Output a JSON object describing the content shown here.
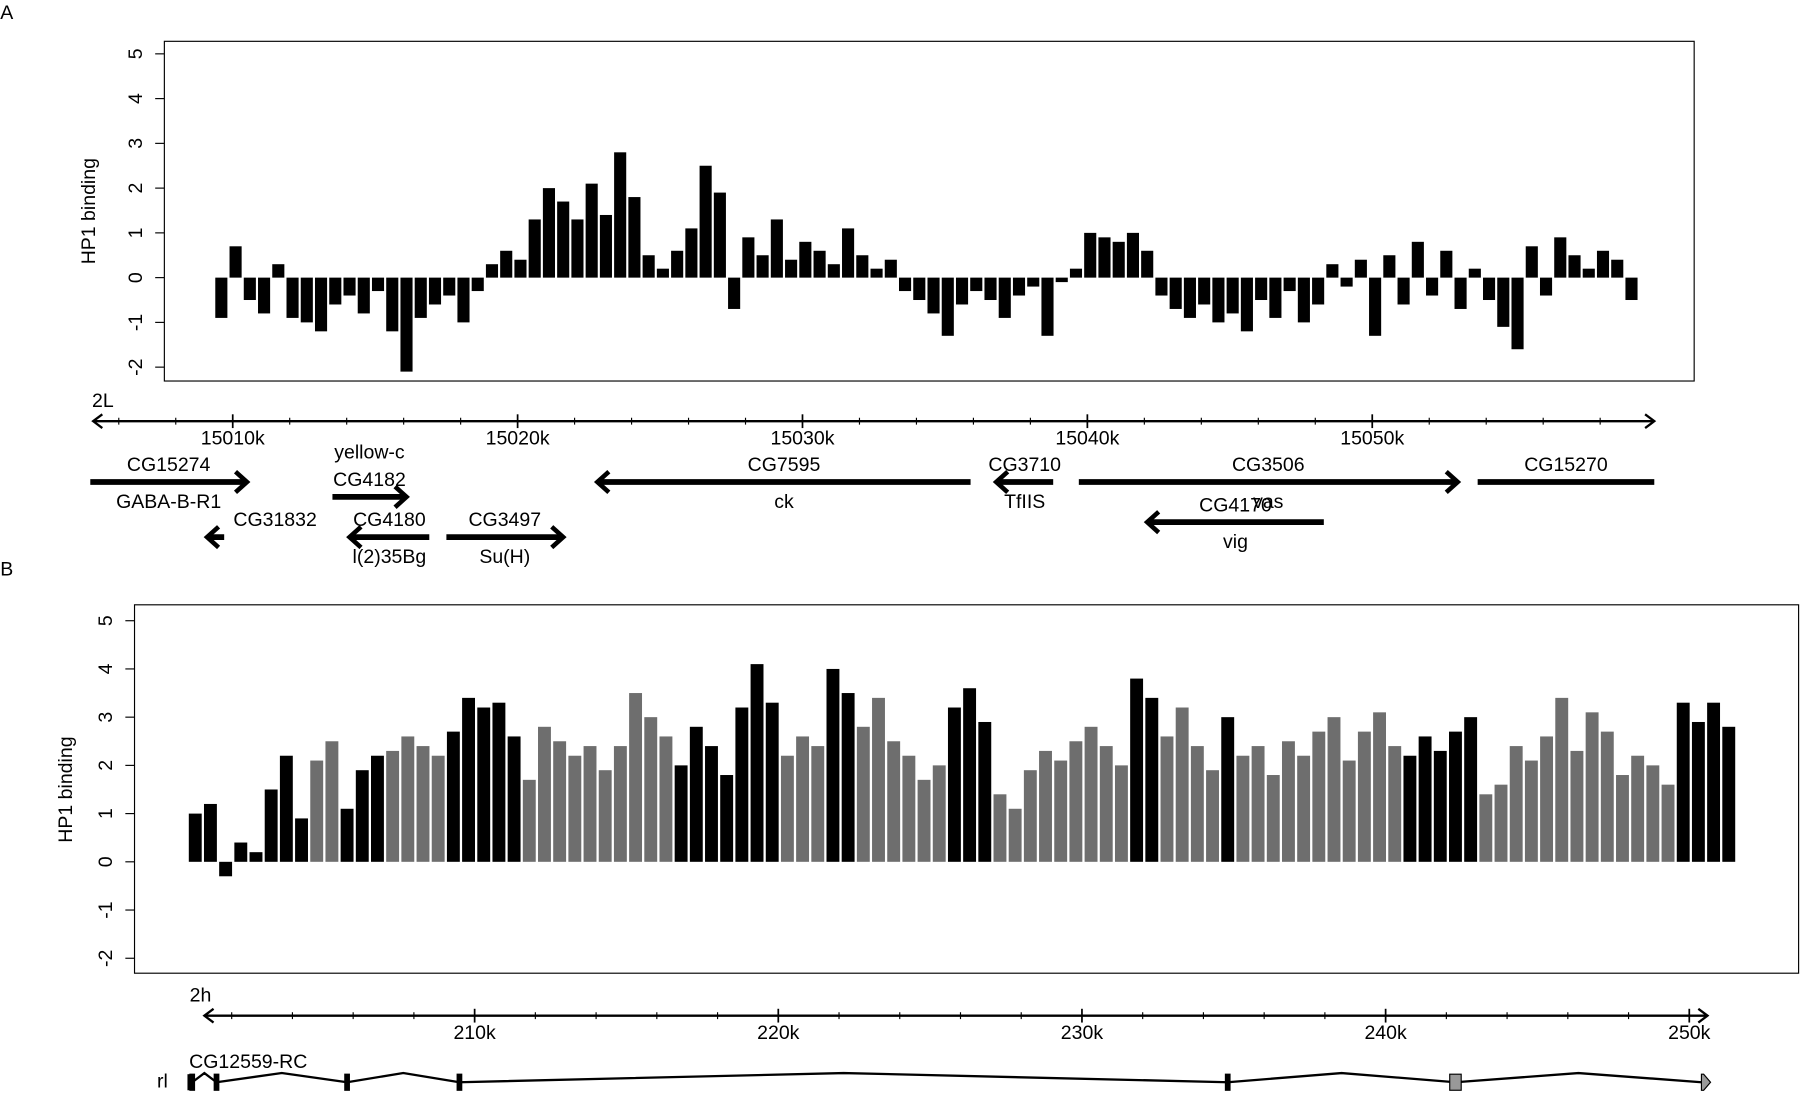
{
  "chart_data": [
    {
      "type": "bar",
      "panel": "A",
      "ylabel": "HP1 binding",
      "chrom": "2L",
      "color": "#000000",
      "ylim": [
        -2.31,
        5.28
      ],
      "yticks": [
        -2,
        -1,
        0,
        1,
        2,
        3,
        4,
        5
      ],
      "xlim": [
        15007.6,
        15061.3
      ],
      "axis_range": [
        15005.1,
        15059.9
      ],
      "xticks": [
        {
          "value": 15010,
          "label": "15010k"
        },
        {
          "value": 15020,
          "label": "15020k"
        },
        {
          "value": 15030,
          "label": "15030k"
        },
        {
          "value": 15040,
          "label": "15040k"
        },
        {
          "value": 15050,
          "label": "15050k"
        }
      ],
      "minor_xticks": [
        15006,
        15008,
        15012,
        15014,
        15016,
        15018,
        15022,
        15024,
        15026,
        15028,
        15032,
        15034,
        15036,
        15038,
        15042,
        15044,
        15046,
        15048,
        15052,
        15054,
        15056,
        15058
      ],
      "x": [
        15009.6,
        15010.1,
        15010.6,
        15011.1,
        15011.6,
        15012.1,
        15012.6,
        15013.1,
        15013.6,
        15014.1,
        15014.6,
        15015.1,
        15015.6,
        15016.1,
        15016.6,
        15017.1,
        15017.6,
        15018.1,
        15018.6,
        15019.1,
        15019.6,
        15020.1,
        15020.6,
        15021.1,
        15021.6,
        15022.1,
        15022.6,
        15023.1,
        15023.6,
        15024.1,
        15024.6,
        15025.1,
        15025.6,
        15026.1,
        15026.6,
        15027.1,
        15027.6,
        15028.1,
        15028.6,
        15029.1,
        15029.6,
        15030.1,
        15030.6,
        15031.1,
        15031.6,
        15032.1,
        15032.6,
        15033.1,
        15033.6,
        15034.1,
        15034.6,
        15035.1,
        15035.6,
        15036.1,
        15036.6,
        15037.1,
        15037.6,
        15038.1,
        15038.6,
        15039.1,
        15039.6,
        15040.1,
        15040.6,
        15041.1,
        15041.6,
        15042.1,
        15042.6,
        15043.1,
        15043.6,
        15044.1,
        15044.6,
        15045.1,
        15045.6,
        15046.1,
        15046.6,
        15047.1,
        15047.6,
        15048.1,
        15048.6,
        15049.1,
        15049.6,
        15050.1,
        15050.6,
        15051.1,
        15051.6,
        15052.1,
        15052.6,
        15053.1,
        15053.6,
        15054.1,
        15054.6,
        15055.1,
        15055.6,
        15056.1,
        15056.6,
        15057.1,
        15057.6,
        15058.1,
        15058.6,
        15059.1
      ],
      "values": [
        -0.9,
        0.7,
        -0.5,
        -0.8,
        0.3,
        -0.9,
        -1.0,
        -1.2,
        -0.6,
        -0.4,
        -0.8,
        -0.3,
        -1.2,
        -2.1,
        -0.9,
        -0.6,
        -0.4,
        -1.0,
        -0.3,
        0.3,
        0.6,
        0.4,
        1.3,
        2.0,
        1.7,
        1.3,
        2.1,
        1.4,
        2.8,
        1.8,
        0.5,
        0.2,
        0.6,
        1.1,
        2.5,
        1.9,
        -0.7,
        0.9,
        0.5,
        1.3,
        0.4,
        0.8,
        0.6,
        0.3,
        1.1,
        0.5,
        0.2,
        0.4,
        -0.3,
        -0.5,
        -0.8,
        -1.3,
        -0.6,
        -0.3,
        -0.5,
        -0.9,
        -0.4,
        -0.2,
        -1.3,
        -0.1,
        0.2,
        1.0,
        0.9,
        0.8,
        1.0,
        0.6,
        -0.4,
        -0.7,
        -0.9,
        -0.6,
        -1.0,
        -0.8,
        -1.2,
        -0.5,
        -0.9,
        -0.3,
        -1.0,
        -0.6,
        0.3,
        -0.2,
        0.4,
        -1.3,
        0.5,
        -0.6,
        0.8,
        -0.4,
        0.6,
        -0.7,
        0.2,
        -0.5,
        -1.1,
        -1.6,
        0.7,
        -0.4,
        0.9,
        0.5,
        0.2,
        0.6,
        0.4,
        -0.5
      ],
      "genes": [
        {
          "name": "CG15274",
          "alias": "GABA-B-R1",
          "start": 15005.0,
          "end": 15010.5,
          "strand": "+"
        },
        {
          "name": "CG31832",
          "start": 15009.1,
          "end": 15009.7,
          "strand": "-"
        },
        {
          "name": "CG4180",
          "alias": "l(2)35Bg",
          "start": 15014.1,
          "end": 15016.9,
          "strand": "-"
        },
        {
          "name": "CG4182",
          "alias": "yellow-c",
          "start": 15013.5,
          "end": 15016.1,
          "strand": "+"
        },
        {
          "name": "CG3497",
          "alias": "Su(H)",
          "start": 15017.5,
          "end": 15021.6,
          "strand": "+"
        },
        {
          "name": "CG7595",
          "alias": "ck",
          "start": 15022.8,
          "end": 15035.9,
          "strand": "-"
        },
        {
          "name": "CG3710",
          "alias": "TfIIS",
          "start": 15036.8,
          "end": 15038.8,
          "strand": "-"
        },
        {
          "name": "CG3506",
          "alias": "vas",
          "start": 15039.7,
          "end": 15053.0,
          "strand": "+"
        },
        {
          "name": "CG4170",
          "alias": "vig",
          "start": 15042.1,
          "end": 15048.3,
          "strand": "-"
        },
        {
          "name": "CG15270",
          "start": 15053.7,
          "end": 15059.9,
          "strand": null
        }
      ]
    },
    {
      "type": "bar",
      "panel": "B",
      "ylabel": "HP1 binding",
      "chrom": "2h",
      "ylim": [
        -2.31,
        5.33
      ],
      "yticks": [
        -2,
        -1,
        0,
        1,
        2,
        3,
        4,
        5
      ],
      "xlim": [
        198.8,
        253.6
      ],
      "axis_range": [
        201.1,
        250.6
      ],
      "xticks": [
        {
          "value": 210,
          "label": "210k"
        },
        {
          "value": 220,
          "label": "220k"
        },
        {
          "value": 230,
          "label": "230k"
        },
        {
          "value": 240,
          "label": "240k"
        },
        {
          "value": 250,
          "label": "250k"
        }
      ],
      "minor_xticks": [
        202,
        204,
        206,
        208,
        212,
        214,
        216,
        218,
        222,
        224,
        226,
        228,
        232,
        234,
        236,
        238,
        242,
        244,
        246,
        248
      ],
      "x": [
        200.8,
        201.3,
        201.8,
        202.3,
        202.8,
        203.3,
        203.8,
        204.3,
        204.8,
        205.3,
        205.8,
        206.3,
        206.8,
        207.3,
        207.8,
        208.3,
        208.8,
        209.3,
        209.8,
        210.3,
        210.8,
        211.3,
        211.8,
        212.3,
        212.8,
        213.3,
        213.8,
        214.3,
        214.8,
        215.3,
        215.8,
        216.3,
        216.8,
        217.3,
        217.8,
        218.3,
        218.8,
        219.3,
        219.8,
        220.3,
        220.8,
        221.3,
        221.8,
        222.3,
        222.8,
        223.3,
        223.8,
        224.3,
        224.8,
        225.3,
        225.8,
        226.3,
        226.8,
        227.3,
        227.8,
        228.3,
        228.8,
        229.3,
        229.8,
        230.3,
        230.8,
        231.3,
        231.8,
        232.3,
        232.8,
        233.3,
        233.8,
        234.3,
        234.8,
        235.3,
        235.8,
        236.3,
        236.8,
        237.3,
        237.8,
        238.3,
        238.8,
        239.3,
        239.8,
        240.3,
        240.8,
        241.3,
        241.8,
        242.3,
        242.8,
        243.3,
        243.8,
        244.3,
        244.8,
        245.3,
        245.8,
        246.3,
        246.8,
        247.3,
        247.8,
        248.3,
        248.8,
        249.3,
        249.8,
        250.3,
        250.8,
        251.3
      ],
      "values": [
        1.0,
        1.2,
        -0.3,
        0.4,
        0.2,
        1.5,
        2.2,
        0.9,
        2.1,
        2.5,
        1.1,
        1.9,
        2.2,
        2.3,
        2.6,
        2.4,
        2.2,
        2.7,
        3.4,
        3.2,
        3.3,
        2.6,
        1.7,
        2.8,
        2.5,
        2.2,
        2.4,
        1.9,
        2.4,
        3.5,
        3.0,
        2.6,
        2.0,
        2.8,
        2.4,
        1.8,
        3.2,
        4.1,
        3.3,
        2.2,
        2.6,
        2.4,
        4.0,
        3.5,
        2.8,
        3.4,
        2.5,
        2.2,
        1.7,
        2.0,
        3.2,
        3.6,
        2.9,
        1.4,
        1.1,
        1.9,
        2.3,
        2.1,
        2.5,
        2.8,
        2.4,
        2.0,
        3.8,
        3.4,
        2.6,
        3.2,
        2.4,
        1.9,
        3.0,
        2.2,
        2.4,
        1.8,
        2.5,
        2.2,
        2.7,
        3.0,
        2.1,
        2.7,
        3.1,
        2.4,
        2.2,
        2.6,
        2.3,
        2.7,
        3.0,
        1.4,
        1.6,
        2.4,
        2.1,
        2.6,
        3.4,
        2.3,
        3.1,
        2.7,
        1.8,
        2.2,
        2.0,
        1.6,
        3.3,
        2.9,
        3.3,
        2.8
      ],
      "colors": [
        "#000000",
        "#000000",
        "#000000",
        "#000000",
        "#000000",
        "#000000",
        "#000000",
        "#000000",
        "#6e6e6e",
        "#6e6e6e",
        "#000000",
        "#000000",
        "#000000",
        "#6e6e6e",
        "#6e6e6e",
        "#6e6e6e",
        "#6e6e6e",
        "#000000",
        "#000000",
        "#000000",
        "#000000",
        "#000000",
        "#6e6e6e",
        "#6e6e6e",
        "#6e6e6e",
        "#6e6e6e",
        "#6e6e6e",
        "#6e6e6e",
        "#6e6e6e",
        "#6e6e6e",
        "#6e6e6e",
        "#6e6e6e",
        "#000000",
        "#000000",
        "#000000",
        "#000000",
        "#000000",
        "#000000",
        "#000000",
        "#6e6e6e",
        "#6e6e6e",
        "#6e6e6e",
        "#000000",
        "#000000",
        "#6e6e6e",
        "#6e6e6e",
        "#6e6e6e",
        "#6e6e6e",
        "#6e6e6e",
        "#6e6e6e",
        "#000000",
        "#000000",
        "#000000",
        "#6e6e6e",
        "#6e6e6e",
        "#6e6e6e",
        "#6e6e6e",
        "#6e6e6e",
        "#6e6e6e",
        "#6e6e6e",
        "#6e6e6e",
        "#6e6e6e",
        "#000000",
        "#000000",
        "#6e6e6e",
        "#6e6e6e",
        "#6e6e6e",
        "#6e6e6e",
        "#000000",
        "#6e6e6e",
        "#6e6e6e",
        "#6e6e6e",
        "#6e6e6e",
        "#6e6e6e",
        "#6e6e6e",
        "#6e6e6e",
        "#6e6e6e",
        "#6e6e6e",
        "#6e6e6e",
        "#6e6e6e",
        "#000000",
        "#000000",
        "#000000",
        "#000000",
        "#000000",
        "#6e6e6e",
        "#6e6e6e",
        "#6e6e6e",
        "#6e6e6e",
        "#6e6e6e",
        "#6e6e6e",
        "#6e6e6e",
        "#6e6e6e",
        "#6e6e6e",
        "#6e6e6e",
        "#6e6e6e",
        "#6e6e6e",
        "#6e6e6e",
        "#000000",
        "#000000",
        "#000000",
        "#000000"
      ],
      "gene_model": {
        "label": "rl",
        "name": "CG12559-RC",
        "start": 200.6,
        "end": 250.7,
        "exons": [
          200.7,
          201.5,
          205.8,
          209.5,
          234.8,
          242.3,
          250.4
        ],
        "exon_colors": [
          "#000000",
          "#000000",
          "#000000",
          "#000000",
          "#000000",
          "#999999",
          "#999999"
        ]
      }
    }
  ]
}
